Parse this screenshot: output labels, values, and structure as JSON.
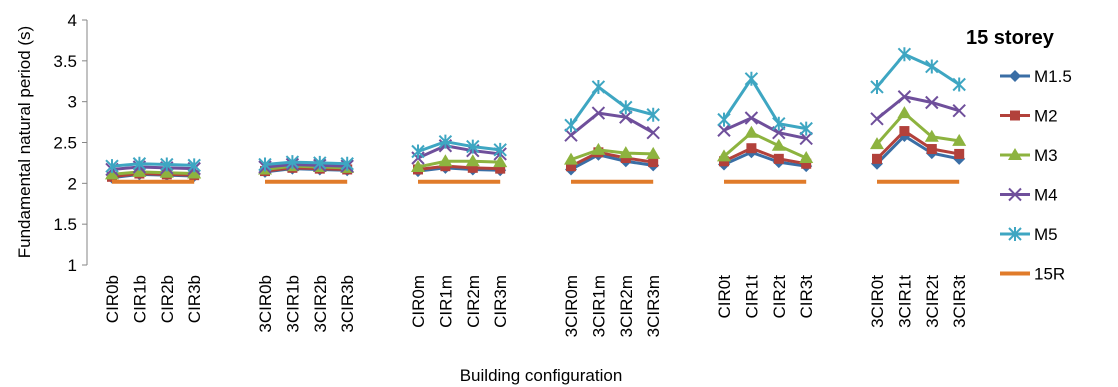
{
  "chart_data": {
    "type": "line",
    "title": "15 storey",
    "xlabel": "Building configuration",
    "ylabel": "Fundamental natural period (s)",
    "ylim": [
      1,
      4
    ],
    "yticks": [
      "1",
      "1.5",
      "2",
      "2.5",
      "3",
      "3.5",
      "4"
    ],
    "grid": false,
    "legend_position": "right",
    "groups": [
      [
        "CIR0b",
        "CIR1b",
        "CIR2b",
        "CIR3b"
      ],
      [
        "3CIR0b",
        "3CIR1b",
        "3CIR2b",
        "3CIR3b"
      ],
      [
        "CIR0m",
        "CIR1m",
        "CIR2m",
        "CIR3m"
      ],
      [
        "3CIR0m",
        "3CIR1m",
        "3CIR2m",
        "3CIR3m"
      ],
      [
        "CIR0t",
        "CIR1t",
        "CIR2t",
        "CIR3t"
      ],
      [
        "3CIR0t",
        "3CIR1t",
        "3CIR2t",
        "3CIR3t"
      ]
    ],
    "series": [
      {
        "name": "M1.5",
        "color": "#3A6EA5",
        "marker": "diamond",
        "values": [
          [
            2.07,
            2.11,
            2.1,
            2.09
          ],
          [
            2.14,
            2.18,
            2.17,
            2.16
          ],
          [
            2.15,
            2.19,
            2.17,
            2.16
          ],
          [
            2.17,
            2.35,
            2.27,
            2.22
          ],
          [
            2.23,
            2.38,
            2.26,
            2.21
          ],
          [
            2.24,
            2.58,
            2.37,
            2.3
          ]
        ]
      },
      {
        "name": "M2",
        "color": "#B2413B",
        "marker": "square",
        "values": [
          [
            2.08,
            2.12,
            2.11,
            2.1
          ],
          [
            2.15,
            2.19,
            2.18,
            2.17
          ],
          [
            2.17,
            2.21,
            2.19,
            2.18
          ],
          [
            2.21,
            2.38,
            2.31,
            2.26
          ],
          [
            2.27,
            2.43,
            2.3,
            2.24
          ],
          [
            2.3,
            2.64,
            2.42,
            2.36
          ]
        ]
      },
      {
        "name": "M3",
        "color": "#8DB33F",
        "marker": "triangle",
        "values": [
          [
            2.11,
            2.14,
            2.13,
            2.12
          ],
          [
            2.17,
            2.21,
            2.2,
            2.19
          ],
          [
            2.2,
            2.27,
            2.27,
            2.26
          ],
          [
            2.29,
            2.41,
            2.37,
            2.36
          ],
          [
            2.33,
            2.62,
            2.46,
            2.31
          ],
          [
            2.48,
            2.86,
            2.57,
            2.52
          ]
        ]
      },
      {
        "name": "M4",
        "color": "#6F4F9B",
        "marker": "x",
        "values": [
          [
            2.17,
            2.2,
            2.19,
            2.18
          ],
          [
            2.2,
            2.23,
            2.22,
            2.21
          ],
          [
            2.31,
            2.46,
            2.4,
            2.36
          ],
          [
            2.59,
            2.86,
            2.81,
            2.62
          ],
          [
            2.65,
            2.8,
            2.62,
            2.55
          ],
          [
            2.79,
            3.06,
            2.99,
            2.89
          ]
        ]
      },
      {
        "name": "M5",
        "color": "#3EA6C2",
        "marker": "star",
        "values": [
          [
            2.21,
            2.24,
            2.23,
            2.22
          ],
          [
            2.23,
            2.26,
            2.25,
            2.24
          ],
          [
            2.39,
            2.51,
            2.45,
            2.41
          ],
          [
            2.71,
            3.18,
            2.93,
            2.84
          ],
          [
            2.78,
            3.28,
            2.73,
            2.67
          ],
          [
            3.18,
            3.58,
            3.43,
            3.21
          ]
        ]
      },
      {
        "name": "15R",
        "color": "#E07B2A",
        "marker": "none",
        "values": [
          [
            2.02,
            2.02,
            2.02,
            2.02
          ],
          [
            2.02,
            2.02,
            2.02,
            2.02
          ],
          [
            2.02,
            2.02,
            2.02,
            2.02
          ],
          [
            2.02,
            2.02,
            2.02,
            2.02
          ],
          [
            2.02,
            2.02,
            2.02,
            2.02
          ],
          [
            2.02,
            2.02,
            2.02,
            2.02
          ]
        ]
      }
    ]
  }
}
